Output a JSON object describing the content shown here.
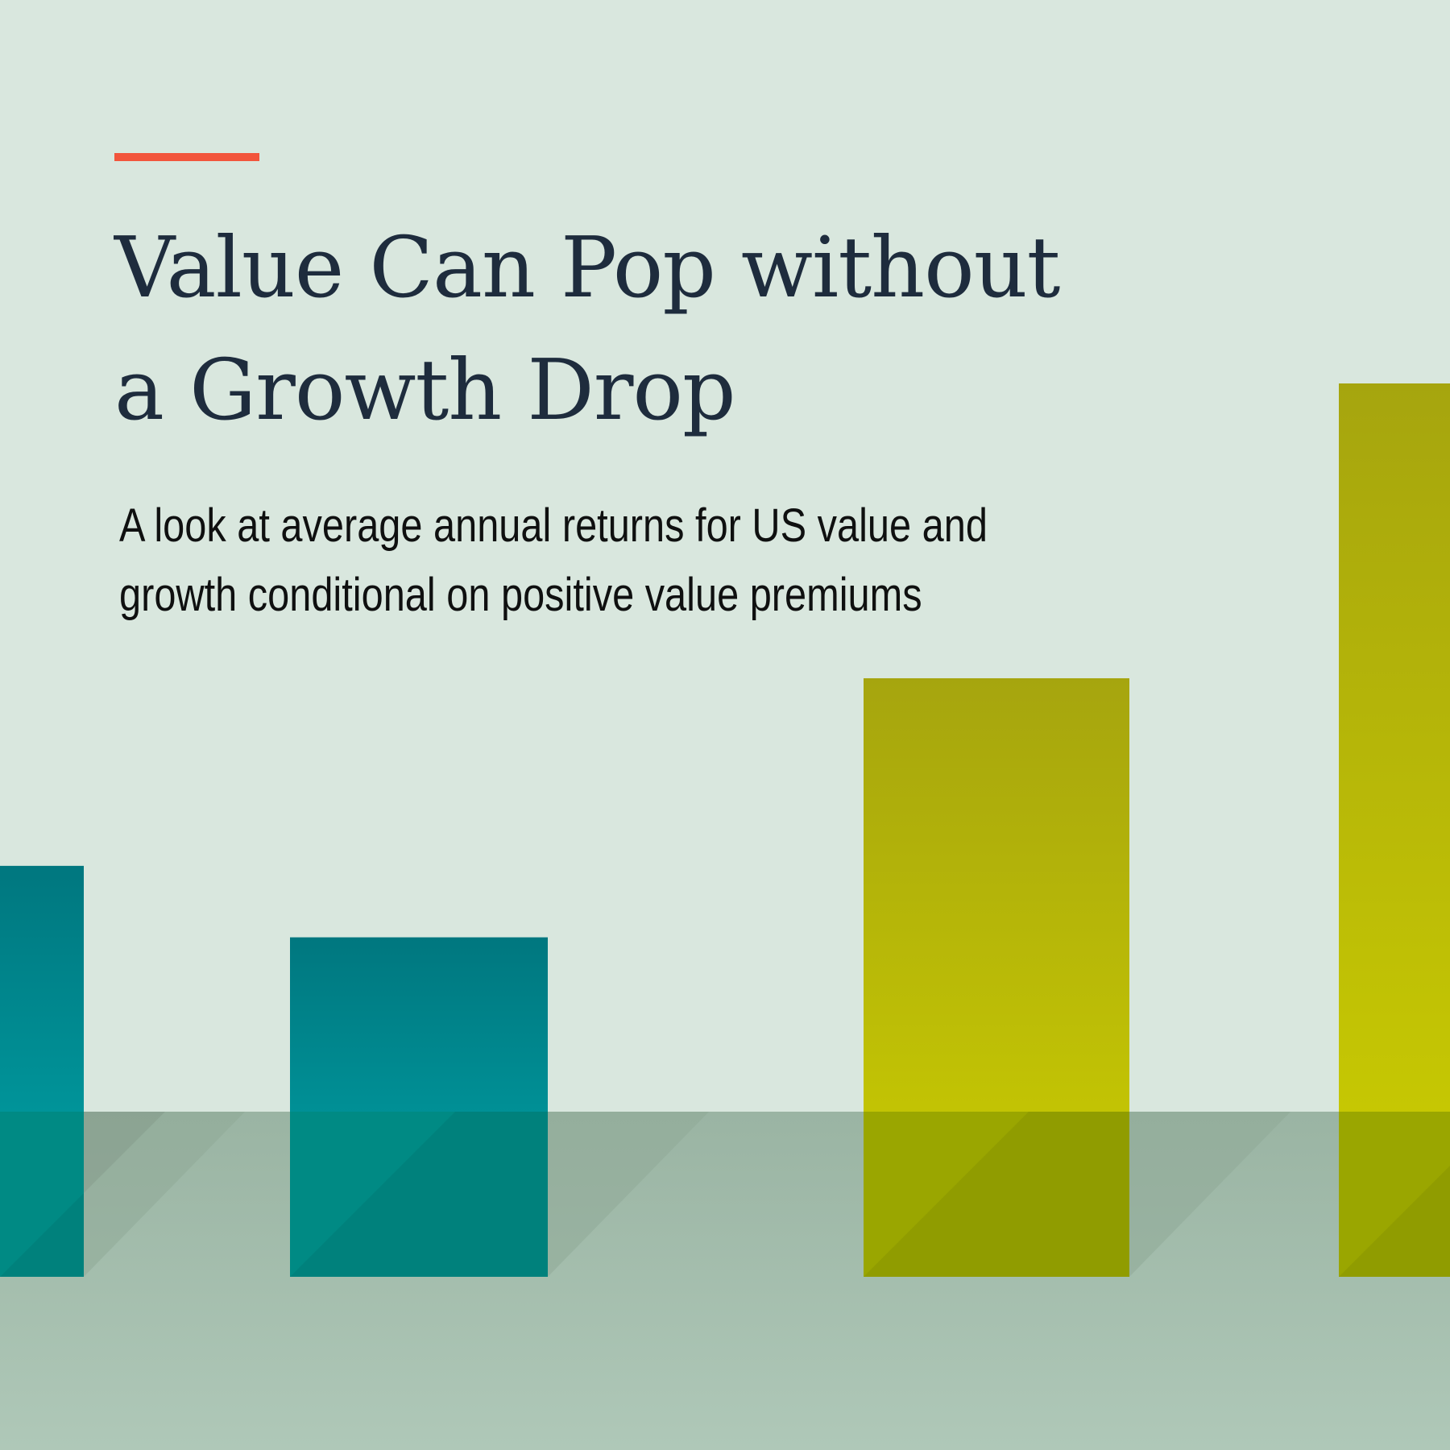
{
  "title_lines": [
    "Value Can Pop without",
    "a Growth Drop"
  ],
  "subtitle_lines": [
    "A look at average annual returns for US value and",
    "growth conditional on positive value premiums"
  ],
  "colors": {
    "background": "#d9e7de",
    "accent": "#f2553c",
    "title_text": "#1e2c3d",
    "subtitle_text": "#0f1010",
    "teal_bar": "#00a0a4",
    "olive_bar": "#c9cb00",
    "floor": "#a3baab"
  },
  "bars": [
    {
      "tone": "teal",
      "level": 0.46
    },
    {
      "tone": "teal",
      "level": 0.38
    },
    {
      "tone": "olive",
      "level": 0.67
    },
    {
      "tone": "olive",
      "level": 1.0
    }
  ]
}
